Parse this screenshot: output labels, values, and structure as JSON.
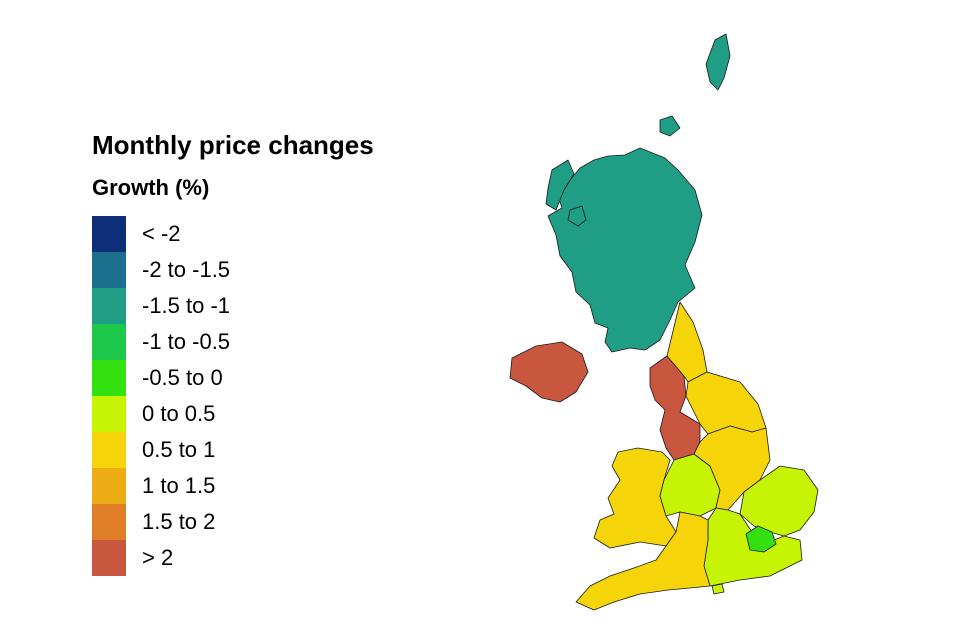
{
  "legend": {
    "title": "Monthly price changes",
    "subtitle": "Growth (%)",
    "items": [
      {
        "label": "< -2",
        "color": "#0d2f7a"
      },
      {
        "label": "-2 to -1.5",
        "color": "#1a708c"
      },
      {
        "label": "-1.5 to -1",
        "color": "#1f9e85"
      },
      {
        "label": "-1 to -0.5",
        "color": "#1ec84b"
      },
      {
        "label": "-0.5 to 0",
        "color": "#35e010"
      },
      {
        "label": "0 to 0.5",
        "color": "#c6f404"
      },
      {
        "label": "0.5 to 1",
        "color": "#f6d40a"
      },
      {
        "label": "1 to 1.5",
        "color": "#eeac14"
      },
      {
        "label": "1.5 to 2",
        "color": "#e07d27"
      },
      {
        "label": "> 2",
        "color": "#c9573f"
      }
    ]
  },
  "map_data": {
    "regions": [
      {
        "name": "Scotland",
        "bin": "-1.5 to -1",
        "color": "#1f9e85"
      },
      {
        "name": "Northern Ireland",
        "bin": "> 2",
        "color": "#c9573f"
      },
      {
        "name": "North West",
        "bin": "> 2",
        "color": "#c9573f"
      },
      {
        "name": "North East",
        "bin": "0.5 to 1",
        "color": "#f6d40a"
      },
      {
        "name": "Yorkshire and The Humber",
        "bin": "0.5 to 1",
        "color": "#f6d40a"
      },
      {
        "name": "Wales",
        "bin": "0.5 to 1",
        "color": "#f6d40a"
      },
      {
        "name": "West Midlands",
        "bin": "0 to 0.5",
        "color": "#c6f404"
      },
      {
        "name": "East Midlands",
        "bin": "0.5 to 1",
        "color": "#f6d40a"
      },
      {
        "name": "East of England",
        "bin": "0 to 0.5",
        "color": "#c6f404"
      },
      {
        "name": "London",
        "bin": "-0.5 to 0",
        "color": "#35e010"
      },
      {
        "name": "South East",
        "bin": "0 to 0.5",
        "color": "#c6f404"
      },
      {
        "name": "South West",
        "bin": "0.5 to 1",
        "color": "#f6d40a"
      }
    ]
  }
}
